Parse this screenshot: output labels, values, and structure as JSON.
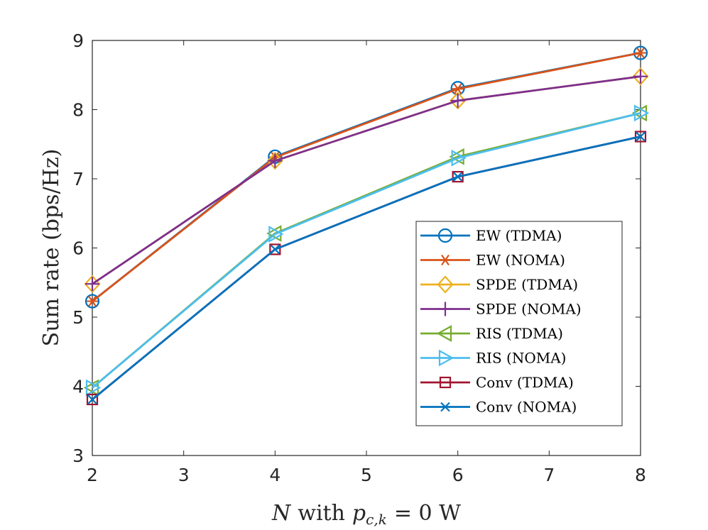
{
  "chart_data": {
    "type": "line",
    "title": "",
    "xlabel": "N with p_{c,k} = 0 W",
    "xlabel_parts": {
      "var": "N",
      "with": "with",
      "p": "p",
      "sub": "c,k",
      "eq": "= 0 W"
    },
    "ylabel": "Sum rate (bps/Hz)",
    "xlim": [
      2,
      8
    ],
    "ylim": [
      3,
      9
    ],
    "x": [
      2,
      4,
      6,
      8
    ],
    "xticks": [
      "2",
      "3",
      "4",
      "5",
      "6",
      "7",
      "8"
    ],
    "yticks": [
      "3",
      "4",
      "5",
      "6",
      "7",
      "8",
      "9"
    ],
    "grid": false,
    "legend_position": "lower-right",
    "series": [
      {
        "name": "EW (TDMA)",
        "values": [
          5.23,
          7.32,
          8.31,
          8.82
        ],
        "color": "#0072BD",
        "marker": "circle"
      },
      {
        "name": "EW (NOMA)",
        "values": [
          5.23,
          7.31,
          8.3,
          8.82
        ],
        "color": "#D95319",
        "marker": "asterisk"
      },
      {
        "name": "SPDE (TDMA)",
        "values": [
          5.48,
          7.26,
          8.13,
          8.48
        ],
        "color": "#EDB120",
        "marker": "diamond"
      },
      {
        "name": "SPDE (NOMA)",
        "values": [
          5.48,
          7.26,
          8.13,
          8.48
        ],
        "color": "#7E2F8E",
        "marker": "plus"
      },
      {
        "name": "RIS (TDMA)",
        "values": [
          3.98,
          6.21,
          7.32,
          7.95
        ],
        "color": "#77AC30",
        "marker": "triangle-left"
      },
      {
        "name": "RIS (NOMA)",
        "values": [
          3.98,
          6.2,
          7.3,
          7.95
        ],
        "color": "#4DBEEE",
        "marker": "triangle-right"
      },
      {
        "name": "Conv (TDMA)",
        "values": [
          3.81,
          5.98,
          7.03,
          7.61
        ],
        "color": "#A2142F",
        "marker": "square"
      },
      {
        "name": "Conv (NOMA)",
        "values": [
          3.81,
          5.98,
          7.03,
          7.61
        ],
        "color": "#0072BD",
        "marker": "x"
      }
    ]
  }
}
